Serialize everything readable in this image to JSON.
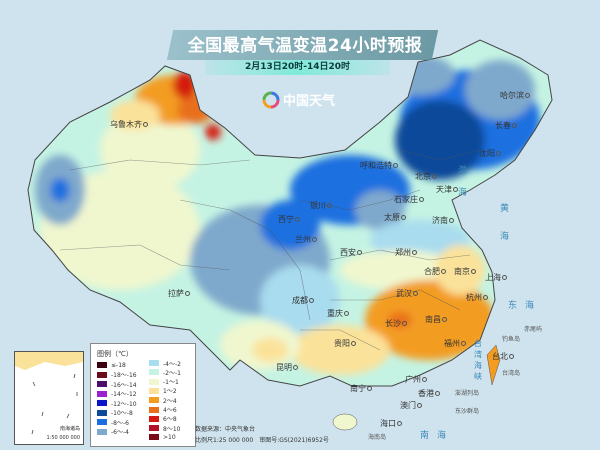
{
  "header": {
    "title": "全国最高气温变温24小时预报",
    "subtitle": "2月13日20时-14日20时",
    "brand": "中国天气"
  },
  "cities": [
    "乌鲁木齐",
    "拉萨",
    "西宁",
    "兰州",
    "银川",
    "西安",
    "成都",
    "重庆",
    "贵阳",
    "昆明",
    "南宁",
    "广州",
    "香港",
    "澳门",
    "海口",
    "长沙",
    "南昌",
    "武汉",
    "郑州",
    "合肥",
    "南京",
    "上海",
    "杭州",
    "福州",
    "台北",
    "太原",
    "石家庄",
    "北京",
    "天津",
    "济南",
    "沈阳",
    "长春",
    "哈尔滨",
    "呼和浩特"
  ],
  "seas": {
    "bohai": "渤海",
    "huanghai": "黄海",
    "donghai": "东海",
    "nanhai": "南海",
    "taiwan_strait": "台湾海峡"
  },
  "islands": {
    "diaoyu": "钓鱼岛",
    "chiwei": "赤尾屿",
    "penghu": "澎湖列岛",
    "dongsha": "东沙群岛",
    "hainan": "海南岛",
    "taiwan": "台湾岛"
  },
  "legend": {
    "title": "图例（℃）",
    "items": [
      {
        "label": "≤-18",
        "color": "#3a0010"
      },
      {
        "label": "-18～-16",
        "color": "#6b0a1a"
      },
      {
        "label": "-16～-14",
        "color": "#4a0f6e"
      },
      {
        "label": "-14～-12",
        "color": "#9b20d0"
      },
      {
        "label": "-12～-10",
        "color": "#0a14c8"
      },
      {
        "label": "-10～-8",
        "color": "#0d4a9a"
      },
      {
        "label": "-8～-6",
        "color": "#1a6fe0"
      },
      {
        "label": "-6～-4",
        "color": "#7fa9cc"
      },
      {
        "label": "-4～-2",
        "color": "#a9dcef"
      },
      {
        "label": "-2～-1",
        "color": "#c5f3e3"
      },
      {
        "label": "-1～1",
        "color": "#f0f7cf"
      },
      {
        "label": "1～2",
        "color": "#fbe29a"
      },
      {
        "label": "2～4",
        "color": "#f39c20"
      },
      {
        "label": "4～6",
        "color": "#e8701a"
      },
      {
        "label": "6～8",
        "color": "#d41a10"
      },
      {
        "label": "8～10",
        "color": "#b0102a"
      },
      {
        "label": ">10",
        "color": "#7a0a1a"
      }
    ]
  },
  "inset": {
    "label": "南海诸岛",
    "scale": "1:50 000 000"
  },
  "footer": {
    "source": "数据来源：中央气象台",
    "scale": "比例尺1:25 000 000　审图号:GS(2021)6952号"
  }
}
